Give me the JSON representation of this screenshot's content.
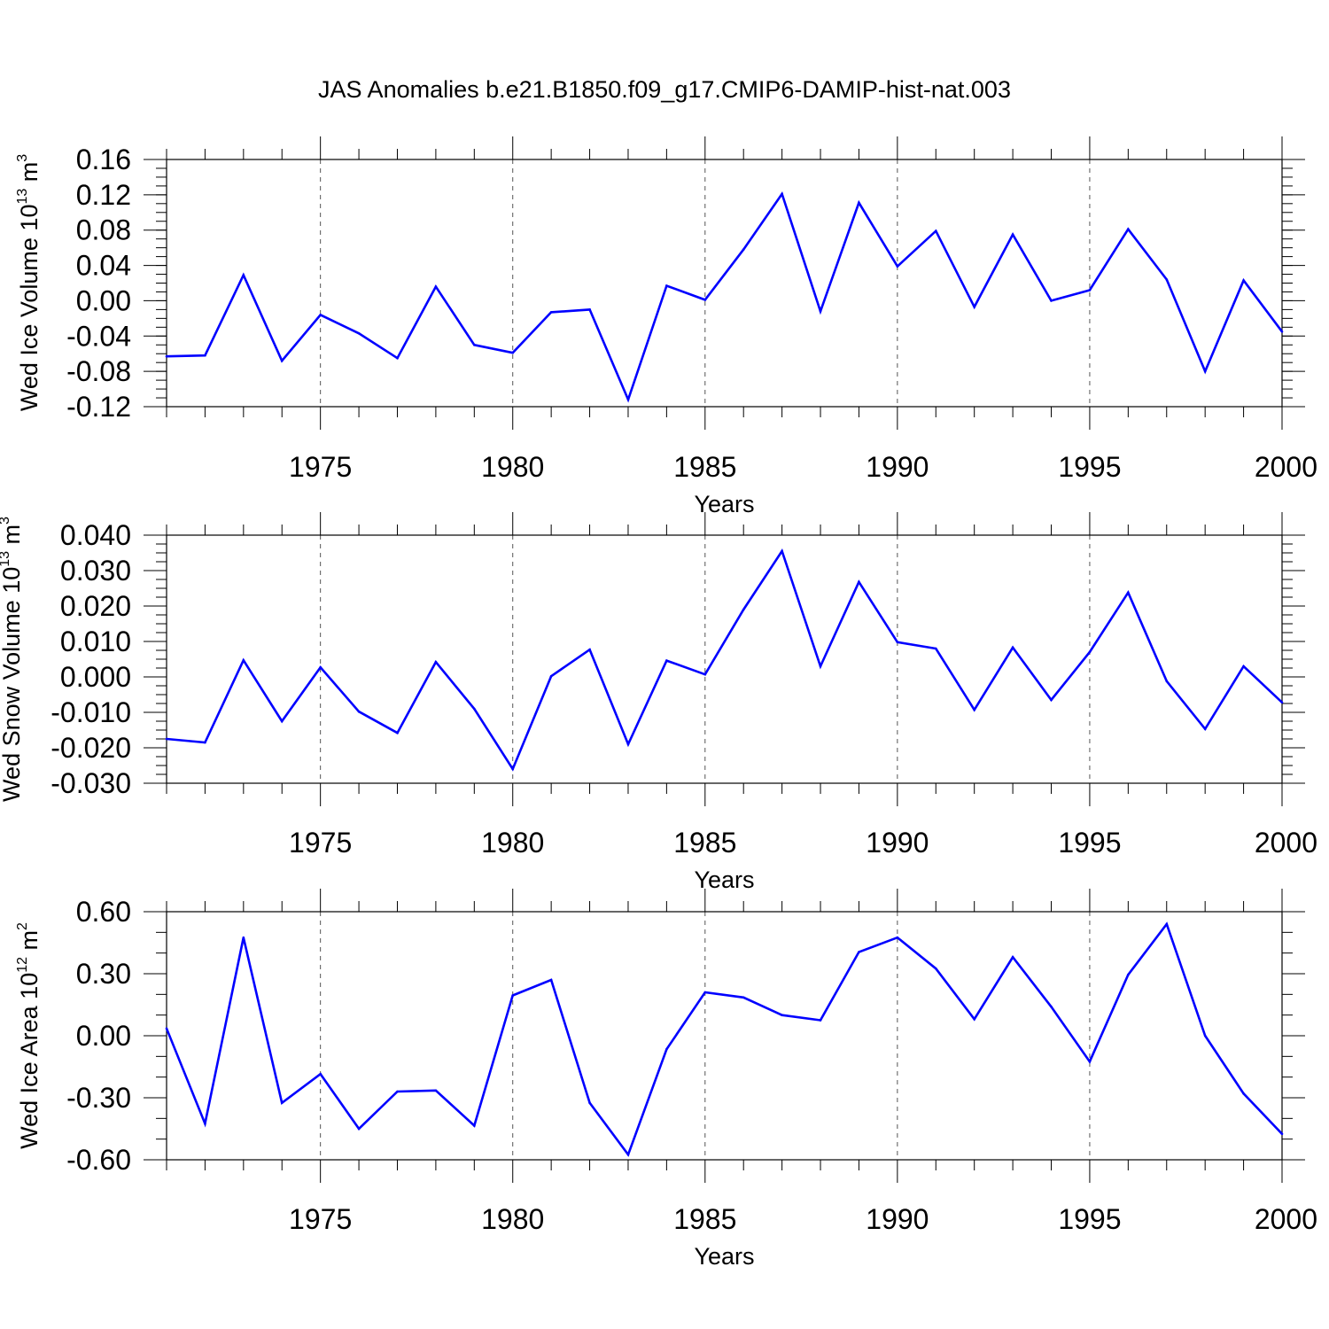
{
  "figure": {
    "title": "JAS Anomalies b.e21.B1850.f09_g17.CMIP6-DAMIP-hist-nat.003"
  },
  "colors": {
    "line": "#0000ff",
    "axis": "#000000",
    "grid": "#555555"
  },
  "chart_data": [
    {
      "type": "line",
      "name": "ice-volume",
      "ylabel": {
        "text": "Wed Ice Volume 10",
        "sup": "13",
        "unit": " m",
        "unit_sup": "3"
      },
      "xlabel": "Years",
      "xlim": [
        1971,
        2000
      ],
      "ylim": [
        -0.12,
        0.16
      ],
      "yticks": [
        -0.12,
        -0.08,
        -0.04,
        0.0,
        0.04,
        0.08,
        0.12,
        0.16
      ],
      "ytick_labels": [
        "-0.12",
        "-0.08",
        "-0.04",
        "0.00",
        "0.04",
        "0.08",
        "0.12",
        "0.16"
      ],
      "yminor_step": 0.01,
      "xticks": [
        1975,
        1980,
        1985,
        1990,
        1995,
        2000
      ],
      "xtick_labels": [
        "1975",
        "1980",
        "1985",
        "1990",
        "1995",
        "2000"
      ],
      "x": [
        1971,
        1972,
        1973,
        1974,
        1975,
        1976,
        1977,
        1978,
        1979,
        1980,
        1981,
        1982,
        1983,
        1984,
        1985,
        1986,
        1987,
        1988,
        1989,
        1990,
        1991,
        1992,
        1993,
        1994,
        1995,
        1996,
        1997,
        1998,
        1999,
        2000
      ],
      "values": [
        -0.063,
        -0.062,
        0.029,
        -0.068,
        -0.016,
        -0.037,
        -0.065,
        0.016,
        -0.05,
        -0.059,
        -0.013,
        -0.01,
        -0.112,
        0.017,
        0.001,
        0.058,
        0.121,
        -0.012,
        0.111,
        0.039,
        0.079,
        -0.007,
        0.075,
        0.0,
        0.012,
        0.081,
        0.024,
        -0.08,
        0.023,
        -0.035
      ]
    },
    {
      "type": "line",
      "name": "snow-volume",
      "ylabel": {
        "text": "Wed Snow Volume 10",
        "sup": "13",
        "unit": " m",
        "unit_sup": "3"
      },
      "xlabel": "Years",
      "xlim": [
        1971,
        2000
      ],
      "ylim": [
        -0.03,
        0.04
      ],
      "yticks": [
        -0.03,
        -0.02,
        -0.01,
        0.0,
        0.01,
        0.02,
        0.03,
        0.04
      ],
      "ytick_labels": [
        "-0.030",
        "-0.020",
        "-0.010",
        "0.000",
        "0.010",
        "0.020",
        "0.030",
        "0.040"
      ],
      "yminor_step": 0.0025,
      "xticks": [
        1975,
        1980,
        1985,
        1990,
        1995,
        2000
      ],
      "xtick_labels": [
        "1975",
        "1980",
        "1985",
        "1990",
        "1995",
        "2000"
      ],
      "x": [
        1971,
        1972,
        1973,
        1974,
        1975,
        1976,
        1977,
        1978,
        1979,
        1980,
        1981,
        1982,
        1983,
        1984,
        1985,
        1986,
        1987,
        1988,
        1989,
        1990,
        1991,
        1992,
        1993,
        1994,
        1995,
        1996,
        1997,
        1998,
        1999,
        2000
      ],
      "values": [
        -0.0175,
        -0.0185,
        0.0047,
        -0.0125,
        0.0027,
        -0.0098,
        -0.0158,
        0.0042,
        -0.009,
        -0.026,
        0.0002,
        0.0077,
        -0.019,
        0.0046,
        0.0007,
        0.019,
        0.0355,
        0.003,
        0.0268,
        0.0098,
        0.008,
        -0.0093,
        0.0083,
        -0.0065,
        0.007,
        0.0238,
        -0.0012,
        -0.0147,
        0.003,
        -0.0072
      ]
    },
    {
      "type": "line",
      "name": "ice-area",
      "ylabel": {
        "text": "Wed Ice Area 10",
        "sup": "12",
        "unit": " m",
        "unit_sup": "2"
      },
      "xlabel": "Years",
      "xlim": [
        1971,
        2000
      ],
      "ylim": [
        -0.6,
        0.6
      ],
      "yticks": [
        -0.6,
        -0.3,
        0.0,
        0.3,
        0.6
      ],
      "ytick_labels": [
        "-0.60",
        "-0.30",
        "0.00",
        "0.30",
        "0.60"
      ],
      "yminor_step": 0.1,
      "xticks": [
        1975,
        1980,
        1985,
        1990,
        1995,
        2000
      ],
      "xtick_labels": [
        "1975",
        "1980",
        "1985",
        "1990",
        "1995",
        "2000"
      ],
      "x": [
        1971,
        1972,
        1973,
        1974,
        1975,
        1976,
        1977,
        1978,
        1979,
        1980,
        1981,
        1982,
        1983,
        1984,
        1985,
        1986,
        1987,
        1988,
        1989,
        1990,
        1991,
        1992,
        1993,
        1994,
        1995,
        1996,
        1997,
        1998,
        1999,
        2000
      ],
      "values": [
        0.035,
        -0.425,
        0.475,
        -0.325,
        -0.185,
        -0.45,
        -0.27,
        -0.265,
        -0.435,
        0.195,
        0.27,
        -0.325,
        -0.575,
        -0.065,
        0.21,
        0.185,
        0.1,
        0.075,
        0.405,
        0.475,
        0.325,
        0.08,
        0.38,
        0.14,
        -0.125,
        0.295,
        0.54,
        0.0,
        -0.28,
        -0.475
      ]
    }
  ]
}
